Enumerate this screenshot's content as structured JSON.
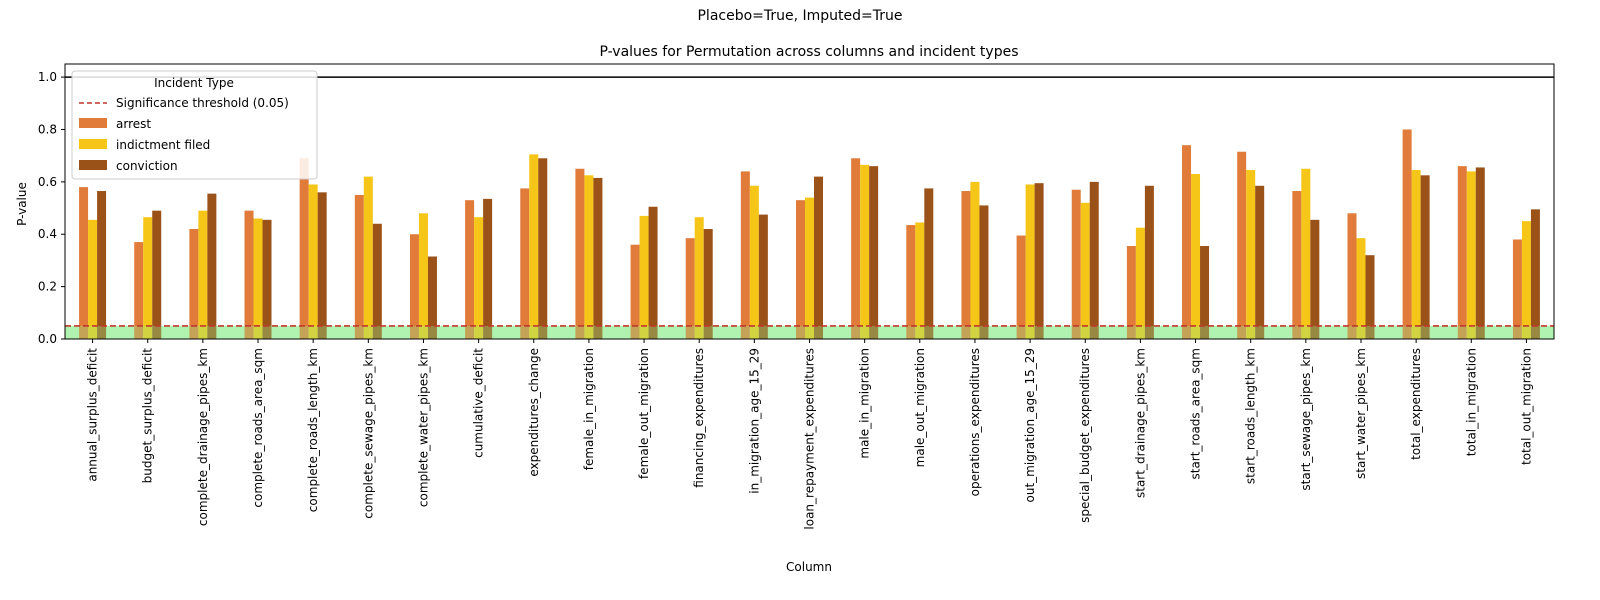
{
  "suptitle": "Placebo=True, Imputed=True",
  "chart_data": {
    "type": "bar",
    "title": "P-values for Permutation across columns and incident types",
    "xlabel": "Column",
    "ylabel": "P-value",
    "ylim": [
      0,
      1.05
    ],
    "yticks": [
      "0.0",
      "0.2",
      "0.4",
      "0.6",
      "0.8",
      "1.0"
    ],
    "grid": false,
    "legend": {
      "title": "Incident Type",
      "placement": "top-left",
      "threshold_label": "Significance threshold (0.05)"
    },
    "threshold": 0.05,
    "reference_line": 1.0,
    "significance_band": [
      0,
      0.05
    ],
    "colors": {
      "arrest": "#e07b39",
      "indictment filed": "#f5c518",
      "conviction": "#9b5219",
      "threshold": "#c0392b",
      "band": "#90ee90",
      "reference": "#000000"
    },
    "categories": [
      "annual_surplus_deficit",
      "budget_surplus_deficit",
      "complete_drainage_pipes_km",
      "complete_roads_area_sqm",
      "complete_roads_length_km",
      "complete_sewage_pipes_km",
      "complete_water_pipes_km",
      "cumulative_deficit",
      "expenditures_change",
      "female_in_migration",
      "female_out_migration",
      "financing_expenditures",
      "in_migration_age_15_29",
      "loan_repayment_expenditures",
      "male_in_migration",
      "male_out_migration",
      "operations_expenditures",
      "out_migration_age_15_29",
      "special_budget_expenditures",
      "start_drainage_pipes_km",
      "start_roads_area_sqm",
      "start_roads_length_km",
      "start_sewage_pipes_km",
      "start_water_pipes_km",
      "total_expenditures",
      "total_in_migration",
      "total_out_migration"
    ],
    "series": [
      {
        "name": "arrest",
        "values": [
          0.58,
          0.37,
          0.42,
          0.49,
          0.69,
          0.55,
          0.4,
          0.53,
          0.575,
          0.65,
          0.36,
          0.385,
          0.64,
          0.53,
          0.69,
          0.435,
          0.565,
          0.395,
          0.57,
          0.355,
          0.74,
          0.715,
          0.565,
          0.48,
          0.8,
          0.66,
          0.38
        ]
      },
      {
        "name": "indictment filed",
        "values": [
          0.455,
          0.465,
          0.49,
          0.46,
          0.59,
          0.62,
          0.48,
          0.465,
          0.705,
          0.625,
          0.47,
          0.465,
          0.585,
          0.54,
          0.665,
          0.445,
          0.6,
          0.59,
          0.52,
          0.425,
          0.63,
          0.645,
          0.65,
          0.385,
          0.645,
          0.64,
          0.45
        ]
      },
      {
        "name": "conviction",
        "values": [
          0.565,
          0.49,
          0.555,
          0.455,
          0.56,
          0.44,
          0.315,
          0.535,
          0.69,
          0.615,
          0.505,
          0.42,
          0.475,
          0.62,
          0.66,
          0.575,
          0.51,
          0.595,
          0.6,
          0.585,
          0.355,
          0.585,
          0.455,
          0.32,
          0.625,
          0.655,
          0.495
        ]
      }
    ]
  }
}
